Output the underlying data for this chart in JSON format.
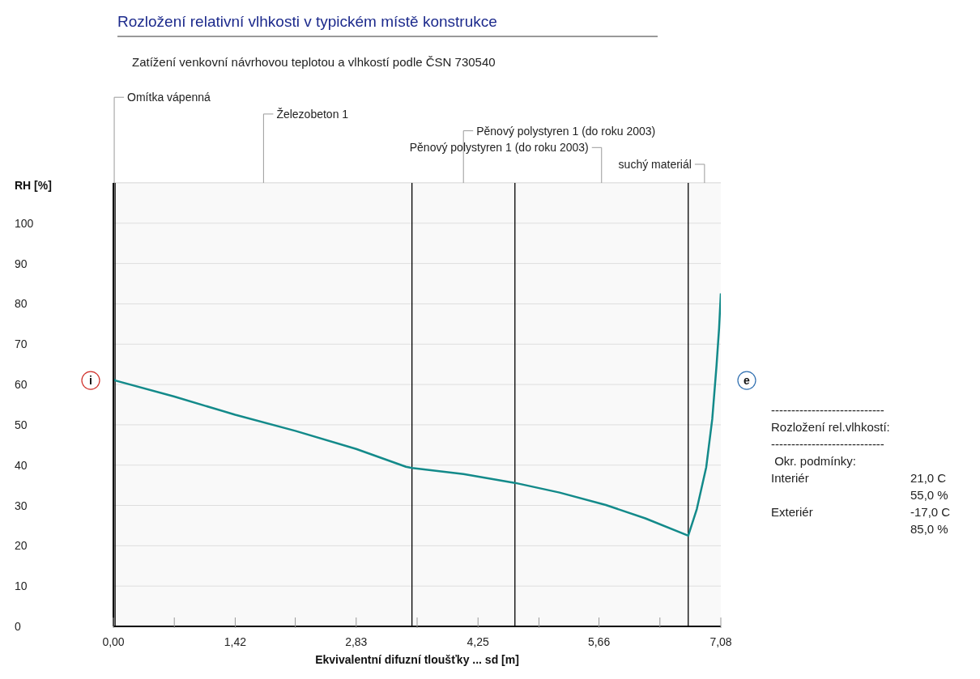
{
  "chart_data": {
    "type": "line",
    "title": "Rozložení relativní vlhkosti v typickém místě konstrukce",
    "subtitle": "Zatížení venkovní návrhovou teplotou a vlhkostí podle ČSN 730540",
    "xlabel": "Ekvivalentní difuzní tloušťky ... sd [m]",
    "ylabel": "RH [%]",
    "x": [
      0,
      0.02,
      0.71,
      1.42,
      2.12,
      2.83,
      3.41,
      3.48,
      4.08,
      4.68,
      5.2,
      5.74,
      6.2,
      6.7,
      6.8,
      6.91,
      6.98,
      7.03,
      7.06,
      7.08
    ],
    "series": [
      {
        "color": "#138a8a",
        "values": [
          61.3,
          61.0,
          57.0,
          52.5,
          48.5,
          44.0,
          39.6,
          39.3,
          37.8,
          35.6,
          33.2,
          30.1,
          26.8,
          22.5,
          29.1,
          39.5,
          51.4,
          64.7,
          74.0,
          82.6
        ]
      }
    ],
    "xlim": [
      0,
      7.08
    ],
    "xticks": [
      {
        "value": 0,
        "label": "0,00"
      },
      {
        "value": 0.71,
        "label": null
      },
      {
        "value": 1.42,
        "label": "1,42"
      },
      {
        "value": 2.12,
        "label": null
      },
      {
        "value": 2.83,
        "label": "2,83"
      },
      {
        "value": 3.54,
        "label": null
      },
      {
        "value": 4.25,
        "label": "4,25"
      },
      {
        "value": 4.96,
        "label": null
      },
      {
        "value": 5.66,
        "label": "5,66"
      },
      {
        "value": 6.37,
        "label": null
      },
      {
        "value": 7.08,
        "label": "7,08"
      }
    ],
    "ylim": [
      0,
      110
    ],
    "yticks": [
      0,
      10,
      20,
      30,
      40,
      50,
      60,
      70,
      80,
      90,
      100
    ],
    "grid": "y",
    "legend": false,
    "marker": "none",
    "line_style": "solid",
    "bands": [
      {
        "axis": "x",
        "from": 0,
        "to": 0.02,
        "label": "Omítka vápenná",
        "color": "#f4f4f4"
      },
      {
        "axis": "x",
        "from": 0.02,
        "to": 3.48,
        "label": "Železobeton 1",
        "color": "#f4f4f4"
      },
      {
        "axis": "x",
        "from": 3.48,
        "to": 4.68,
        "label": "Pěnový polystyren 1 (do roku 2003)",
        "color": "#f4f4f4"
      },
      {
        "axis": "x",
        "from": 4.68,
        "to": 6.7,
        "label": "Pěnový polystyren 1 (do roku 2003)",
        "color": "#f4f4f4"
      },
      {
        "axis": "x",
        "from": 6.7,
        "to": 7.08,
        "label": "suchý materiál",
        "color": "#f4f4f4"
      }
    ],
    "ref_lines": [
      {
        "axis": "x",
        "value": 0,
        "color": "#000000"
      },
      {
        "axis": "x",
        "value": 0.02,
        "color": "#000000"
      },
      {
        "axis": "x",
        "value": 3.48,
        "color": "#000000"
      },
      {
        "axis": "x",
        "value": 4.68,
        "color": "#000000"
      },
      {
        "axis": "x",
        "value": 6.7,
        "color": "#000000"
      }
    ],
    "annotations": [
      {
        "text": "i",
        "x": 0,
        "y": 61
      },
      "e",
      "----------------------------",
      "Rozložení rel.vlhkostí:",
      "----------------------------",
      " Okr. podmínky:",
      "Interiér\t21,0 C",
      "\t55,0 %",
      "Exteriér\t-17,0 C",
      "\t85,0 %"
    ]
  }
}
